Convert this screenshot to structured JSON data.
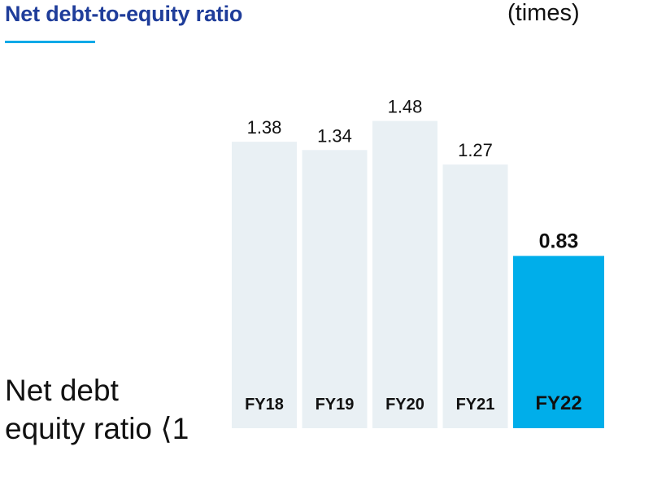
{
  "header": {
    "title": "Net debt-to-equity ratio",
    "unit": "(times)"
  },
  "note": {
    "line1": "Net debt",
    "line2": "equity ratio ⟨1"
  },
  "colors": {
    "title": "#1f3d9a",
    "accent": "#00a9e8",
    "bar_default": "#e9f0f4",
    "bar_highlight": "#00aeea",
    "label": "#111111"
  },
  "chart_data": {
    "type": "bar",
    "title": "Net debt-to-equity ratio",
    "ylabel": "(times)",
    "categories": [
      "FY18",
      "FY19",
      "FY20",
      "FY21",
      "FY22"
    ],
    "values": [
      1.38,
      1.34,
      1.48,
      1.27,
      0.83
    ],
    "value_labels": [
      "1.38",
      "1.34",
      "1.48",
      "1.27",
      "0.83"
    ],
    "highlight_index": 4,
    "ylim": [
      0,
      1.48
    ],
    "grid": false,
    "legend": "none"
  }
}
